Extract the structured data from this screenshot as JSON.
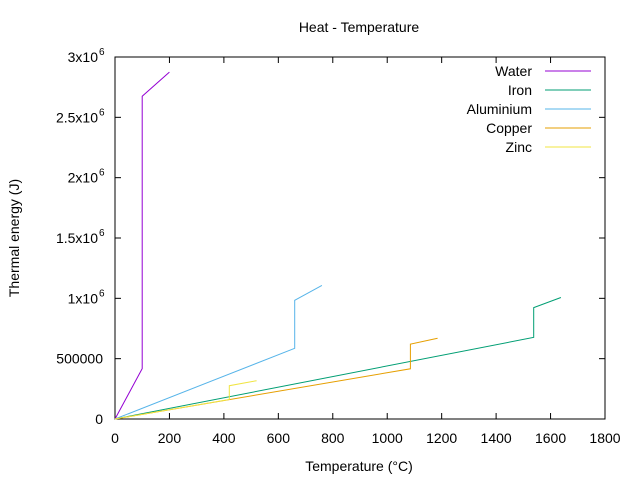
{
  "chart_data": {
    "type": "line",
    "title": "Heat - Temperature",
    "xlabel": "Temperature (°C)",
    "ylabel": "Thermal energy (J)",
    "xlim": [
      0,
      1800
    ],
    "ylim": [
      0,
      3000000
    ],
    "x_ticks": [
      {
        "value": 0,
        "label": "0"
      },
      {
        "value": 200,
        "label": "200"
      },
      {
        "value": 400,
        "label": "400"
      },
      {
        "value": 600,
        "label": "600"
      },
      {
        "value": 800,
        "label": "800"
      },
      {
        "value": 1000,
        "label": "1000"
      },
      {
        "value": 1200,
        "label": "1200"
      },
      {
        "value": 1400,
        "label": "1400"
      },
      {
        "value": 1600,
        "label": "1600"
      },
      {
        "value": 1800,
        "label": "1800"
      }
    ],
    "y_ticks": [
      {
        "value": 0,
        "label": "0",
        "exp": ""
      },
      {
        "value": 500000,
        "label": "500000",
        "exp": ""
      },
      {
        "value": 1000000,
        "label": "1x10",
        "exp": "6"
      },
      {
        "value": 1500000,
        "label": "1.5x10",
        "exp": "6"
      },
      {
        "value": 2000000,
        "label": "2x10",
        "exp": "6"
      },
      {
        "value": 2500000,
        "label": "2.5x10",
        "exp": "6"
      },
      {
        "value": 3000000,
        "label": "3x10",
        "exp": "6"
      }
    ],
    "grid": false,
    "legend_position": "top-right",
    "series": [
      {
        "name": "Water",
        "color": "#9400d3",
        "x": [
          0,
          100,
          100,
          200
        ],
        "y": [
          0,
          418000,
          2675000,
          2875000
        ]
      },
      {
        "name": "Iron",
        "color": "#009e73",
        "x": [
          0,
          1538,
          1538,
          1638
        ],
        "y": [
          0,
          676000,
          923000,
          1007000
        ]
      },
      {
        "name": "Aluminium",
        "color": "#56b4e9",
        "x": [
          0,
          660,
          660,
          760
        ],
        "y": [
          0,
          586000,
          984000,
          1107000
        ]
      },
      {
        "name": "Copper",
        "color": "#e69f00",
        "x": [
          0,
          1085,
          1085,
          1185
        ],
        "y": [
          0,
          416000,
          621000,
          670000
        ]
      },
      {
        "name": "Zinc",
        "color": "#f0e442",
        "x": [
          0,
          420,
          420,
          520
        ],
        "y": [
          0,
          162000,
          276000,
          317000
        ]
      }
    ]
  }
}
